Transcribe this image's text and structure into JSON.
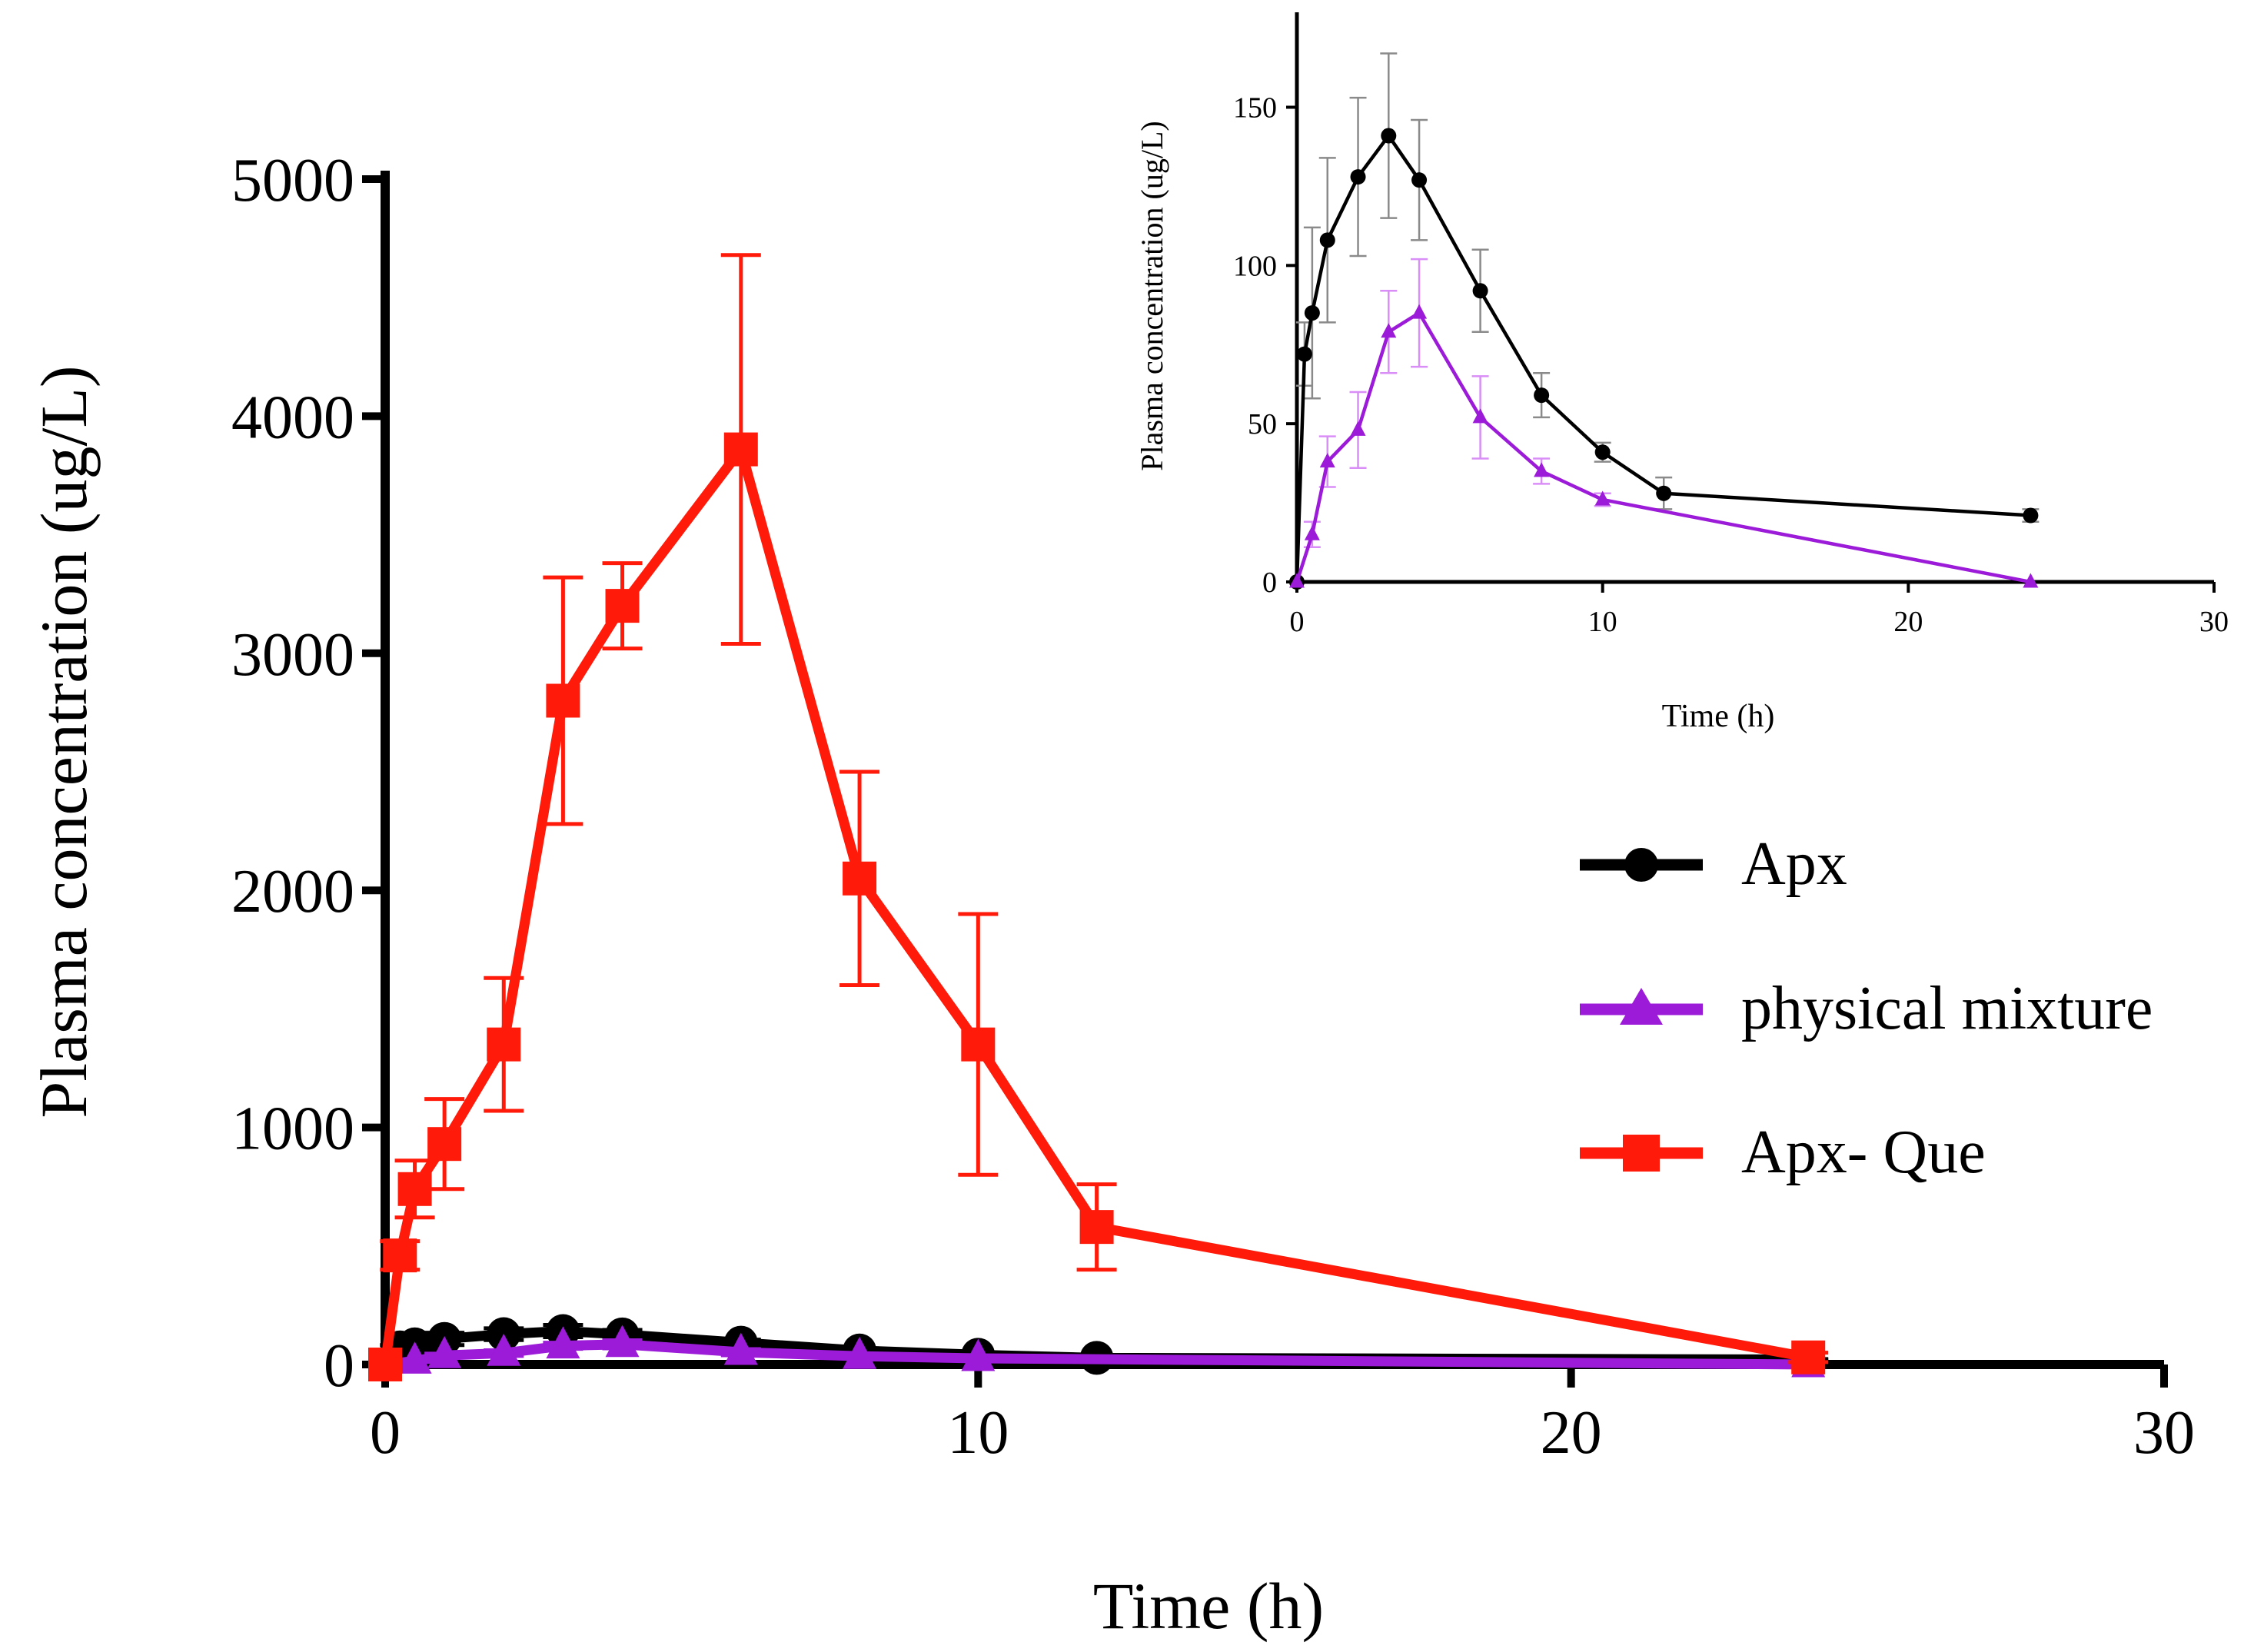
{
  "chart_data": [
    {
      "id": "main",
      "type": "line",
      "xlabel": "Time (h)",
      "ylabel": "Plasma concentration (ug/L)",
      "xlim": [
        0,
        30
      ],
      "ylim": [
        0,
        5000
      ],
      "xticks": [
        0,
        10,
        20,
        30
      ],
      "yticks": [
        0,
        1000,
        2000,
        3000,
        4000,
        5000
      ],
      "legend_position": "right-middle",
      "series": [
        {
          "name": "Apx",
          "color": "#000000",
          "marker": "circle",
          "x": [
            0,
            0.25,
            0.5,
            1,
            2,
            3,
            4,
            6,
            8,
            10,
            12,
            24
          ],
          "y": [
            0,
            72,
            85,
            108,
            128,
            141,
            127,
            92,
            59,
            41,
            28,
            21
          ],
          "err": [
            0,
            10,
            27,
            26,
            25,
            26,
            19,
            13,
            7,
            3,
            5,
            2
          ]
        },
        {
          "name": "physical mixture",
          "color": "#9b1bd8",
          "marker": "triangle",
          "x": [
            0,
            0.5,
            1,
            2,
            3,
            4,
            6,
            8,
            10,
            24
          ],
          "y": [
            0,
            15,
            38,
            48,
            79,
            85,
            52,
            35,
            26,
            0
          ],
          "err": [
            0,
            4,
            8,
            12,
            13,
            17,
            13,
            4,
            2,
            0
          ]
        },
        {
          "name": "Apx- Que",
          "color": "#ff1a0a",
          "marker": "square",
          "x": [
            0,
            0.25,
            0.5,
            1,
            2,
            3,
            4,
            6,
            8,
            10,
            12,
            24
          ],
          "y": [
            0,
            460,
            740,
            930,
            1350,
            2800,
            3200,
            3860,
            2050,
            1350,
            580,
            30
          ],
          "err": [
            0,
            60,
            120,
            190,
            280,
            520,
            180,
            820,
            450,
            550,
            180,
            20
          ]
        }
      ]
    },
    {
      "id": "inset",
      "type": "line",
      "xlabel": "Time (h)",
      "ylabel": "Plasma concentration (ug/L)",
      "xlim": [
        0,
        30
      ],
      "ylim": [
        0,
        180
      ],
      "xticks": [
        0,
        10,
        20,
        30
      ],
      "yticks": [
        0,
        50,
        100,
        150
      ],
      "tick_labels_x": [
        "0",
        "10",
        "20",
        "30"
      ],
      "series": [
        {
          "name": "Apx",
          "color": "#000000",
          "marker": "circle",
          "x": [
            0,
            0.25,
            0.5,
            1,
            2,
            3,
            4,
            6,
            8,
            10,
            12,
            24
          ],
          "y": [
            0,
            72,
            85,
            108,
            128,
            141,
            127,
            92,
            59,
            41,
            28,
            21
          ],
          "err": [
            0,
            10,
            27,
            26,
            25,
            26,
            19,
            13,
            7,
            3,
            5,
            2
          ]
        },
        {
          "name": "physical mixture",
          "color": "#9b1bd8",
          "marker": "triangle",
          "x": [
            0,
            0.5,
            1,
            2,
            3,
            4,
            6,
            8,
            10,
            24
          ],
          "y": [
            0,
            15,
            38,
            48,
            79,
            85,
            52,
            35,
            26,
            0
          ],
          "err": [
            0,
            4,
            8,
            12,
            13,
            17,
            13,
            4,
            2,
            0
          ]
        }
      ]
    }
  ]
}
